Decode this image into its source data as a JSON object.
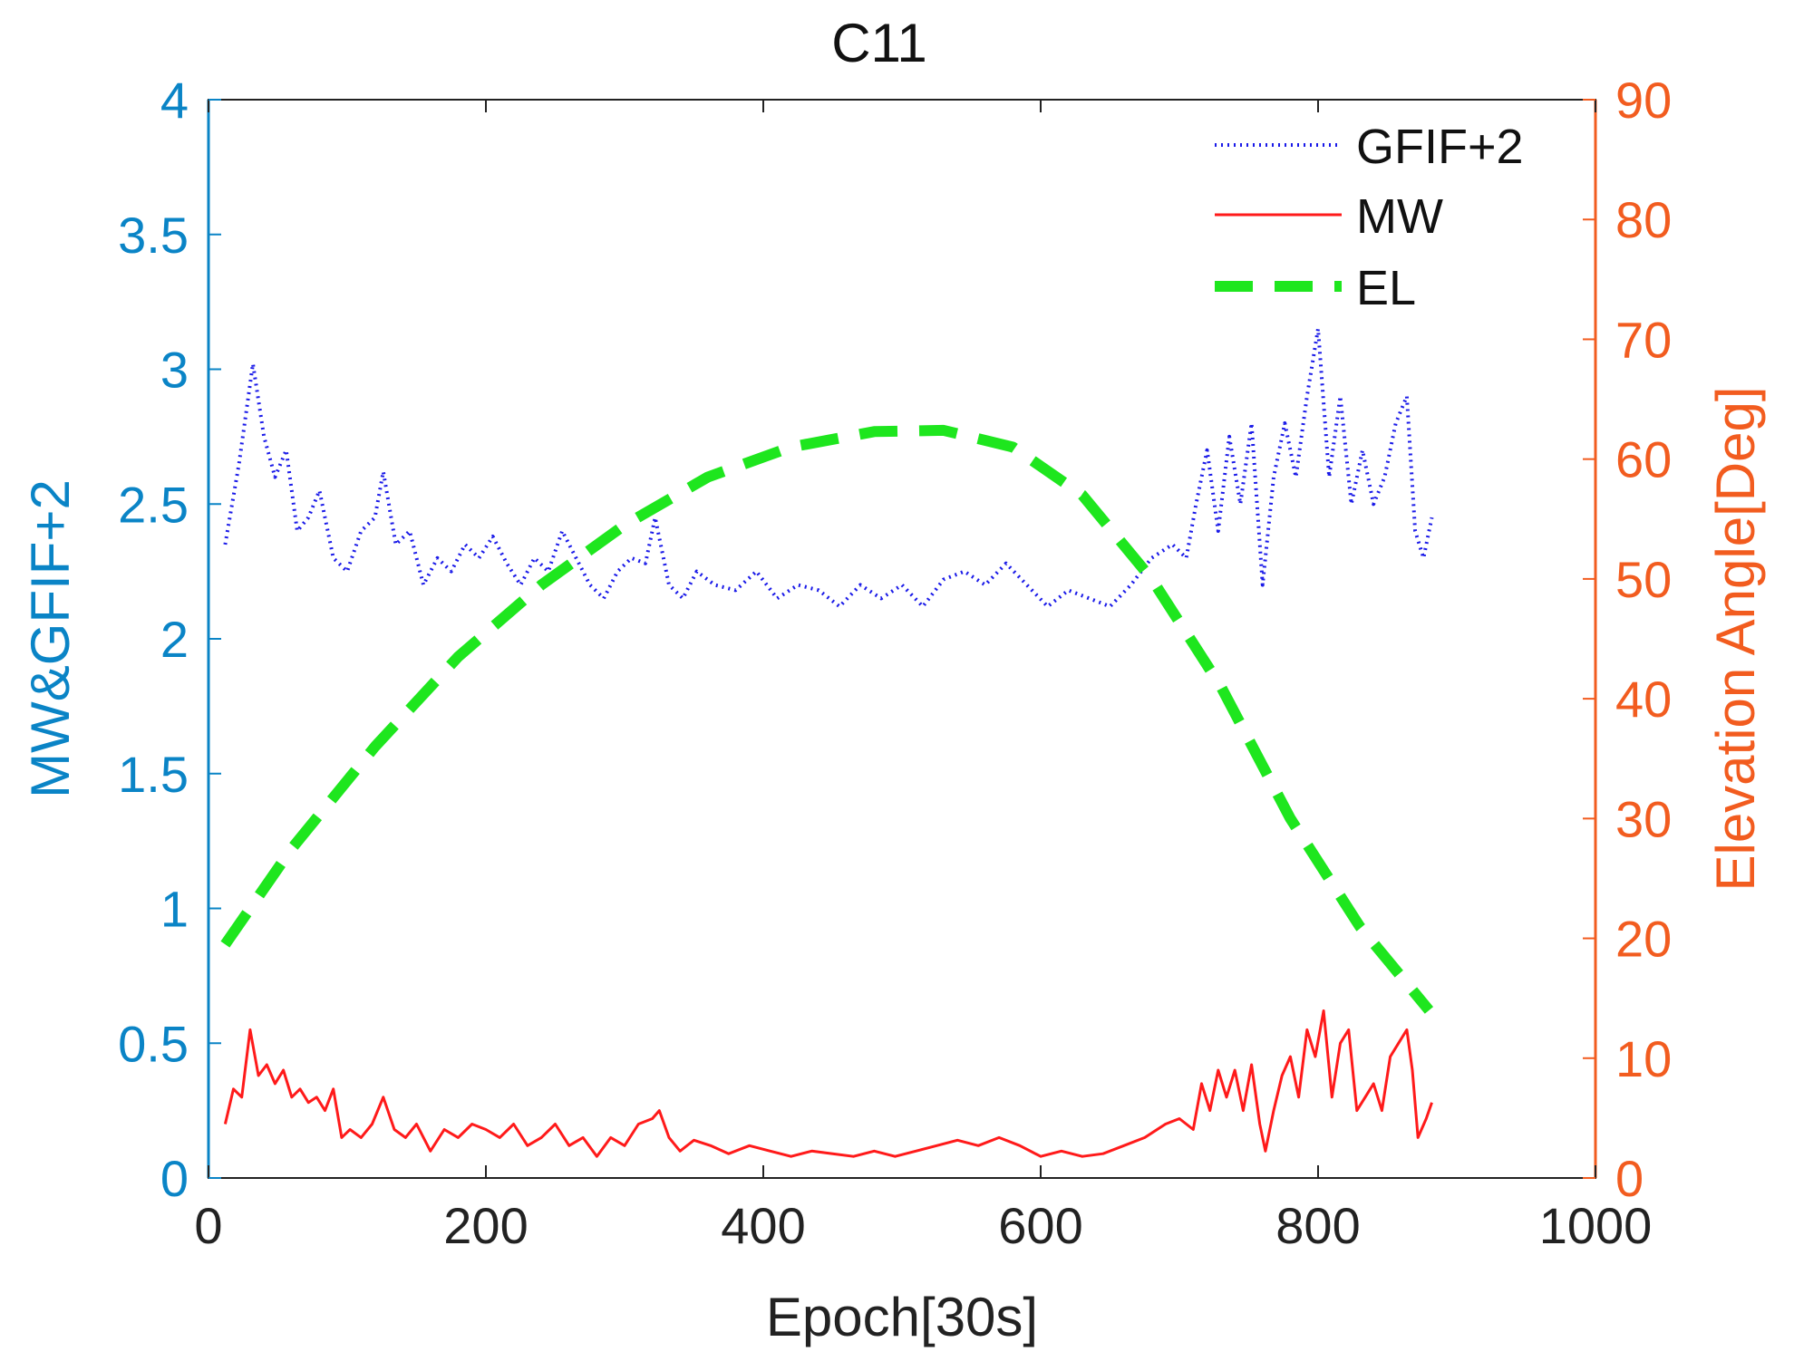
{
  "chart_data": {
    "type": "line",
    "title": "C11",
    "xlabel": "Epoch[30s]",
    "ylabel_left": "MW&GFIF+2",
    "ylabel_right": "Elevation Angle[Deg]",
    "xlim": [
      0,
      1000
    ],
    "ylim_left": [
      0,
      4
    ],
    "ylim_right": [
      0,
      90
    ],
    "x_ticks": [
      "0",
      "200",
      "400",
      "600",
      "800",
      "1000"
    ],
    "y_ticks_left": [
      "0",
      "0.5",
      "1",
      "1.5",
      "2",
      "2.5",
      "3",
      "3.5",
      "4"
    ],
    "y_ticks_right": [
      "0",
      "10",
      "20",
      "30",
      "40",
      "50",
      "60",
      "70",
      "80",
      "90"
    ],
    "legend_position": "top-right",
    "colors": {
      "left_axis": "#0a84c6",
      "right_axis": "#f25c1f",
      "gfif": "#1a1ae8",
      "mw": "#ff1a1a",
      "el": "#1ee61e"
    },
    "series": [
      {
        "name": "GFIF+2",
        "axis": "left",
        "style": "dotted",
        "x": [
          12,
          22,
          32,
          40,
          48,
          56,
          64,
          72,
          80,
          90,
          100,
          110,
          120,
          126,
          135,
          145,
          155,
          165,
          175,
          185,
          195,
          205,
          215,
          225,
          235,
          245,
          255,
          265,
          275,
          285,
          295,
          305,
          315,
          322,
          332,
          342,
          352,
          365,
          380,
          395,
          410,
          425,
          440,
          455,
          470,
          485,
          500,
          515,
          530,
          545,
          560,
          575,
          590,
          605,
          620,
          635,
          650,
          665,
          680,
          695,
          705,
          712,
          720,
          728,
          736,
          744,
          752,
          760,
          768,
          776,
          784,
          792,
          800,
          808,
          816,
          824,
          832,
          840,
          848,
          856,
          864,
          870,
          876,
          882
        ],
        "y": [
          2.35,
          2.65,
          3.02,
          2.75,
          2.6,
          2.7,
          2.4,
          2.45,
          2.55,
          2.3,
          2.25,
          2.4,
          2.45,
          2.62,
          2.35,
          2.4,
          2.2,
          2.3,
          2.25,
          2.35,
          2.3,
          2.38,
          2.28,
          2.2,
          2.3,
          2.25,
          2.4,
          2.3,
          2.2,
          2.15,
          2.25,
          2.3,
          2.28,
          2.45,
          2.2,
          2.15,
          2.25,
          2.2,
          2.18,
          2.25,
          2.15,
          2.2,
          2.18,
          2.12,
          2.2,
          2.15,
          2.2,
          2.12,
          2.22,
          2.25,
          2.2,
          2.28,
          2.2,
          2.12,
          2.18,
          2.15,
          2.12,
          2.2,
          2.3,
          2.35,
          2.3,
          2.5,
          2.7,
          2.4,
          2.75,
          2.5,
          2.8,
          2.2,
          2.6,
          2.8,
          2.6,
          2.9,
          3.15,
          2.6,
          2.9,
          2.5,
          2.7,
          2.5,
          2.6,
          2.8,
          2.9,
          2.4,
          2.3,
          2.45
        ]
      },
      {
        "name": "MW",
        "axis": "left",
        "style": "solid",
        "x": [
          12,
          18,
          24,
          30,
          36,
          42,
          48,
          54,
          60,
          66,
          72,
          78,
          84,
          90,
          96,
          102,
          110,
          118,
          126,
          134,
          142,
          150,
          160,
          170,
          180,
          190,
          200,
          210,
          220,
          230,
          240,
          250,
          260,
          270,
          280,
          290,
          300,
          310,
          320,
          325,
          332,
          340,
          350,
          362,
          375,
          390,
          405,
          420,
          435,
          450,
          465,
          480,
          495,
          510,
          525,
          540,
          555,
          570,
          585,
          600,
          615,
          630,
          645,
          660,
          675,
          690,
          700,
          710,
          716,
          722,
          728,
          734,
          740,
          746,
          752,
          758,
          762,
          768,
          774,
          780,
          786,
          792,
          798,
          804,
          810,
          816,
          822,
          828,
          834,
          840,
          846,
          852,
          858,
          864,
          868,
          872,
          878,
          882
        ],
        "y": [
          0.2,
          0.33,
          0.3,
          0.55,
          0.38,
          0.42,
          0.35,
          0.4,
          0.3,
          0.33,
          0.28,
          0.3,
          0.25,
          0.33,
          0.15,
          0.18,
          0.15,
          0.2,
          0.3,
          0.18,
          0.15,
          0.2,
          0.1,
          0.18,
          0.15,
          0.2,
          0.18,
          0.15,
          0.2,
          0.12,
          0.15,
          0.2,
          0.12,
          0.15,
          0.08,
          0.15,
          0.12,
          0.2,
          0.22,
          0.25,
          0.15,
          0.1,
          0.14,
          0.12,
          0.09,
          0.12,
          0.1,
          0.08,
          0.1,
          0.09,
          0.08,
          0.1,
          0.08,
          0.1,
          0.12,
          0.14,
          0.12,
          0.15,
          0.12,
          0.08,
          0.1,
          0.08,
          0.09,
          0.12,
          0.15,
          0.2,
          0.22,
          0.18,
          0.35,
          0.25,
          0.4,
          0.3,
          0.4,
          0.25,
          0.42,
          0.2,
          0.1,
          0.25,
          0.38,
          0.45,
          0.3,
          0.55,
          0.45,
          0.62,
          0.3,
          0.5,
          0.55,
          0.25,
          0.3,
          0.35,
          0.25,
          0.45,
          0.5,
          0.55,
          0.4,
          0.15,
          0.22,
          0.28
        ]
      },
      {
        "name": "EL",
        "axis": "right",
        "style": "dashed",
        "x": [
          12,
          60,
          120,
          180,
          240,
          300,
          360,
          420,
          480,
          530,
          580,
          630,
          680,
          730,
          780,
          830,
          880
        ],
        "y": [
          19.5,
          27.5,
          36,
          43.5,
          49.5,
          54.5,
          58.5,
          61,
          62.3,
          62.4,
          61,
          57,
          50,
          41,
          30,
          21,
          14
        ]
      }
    ]
  }
}
